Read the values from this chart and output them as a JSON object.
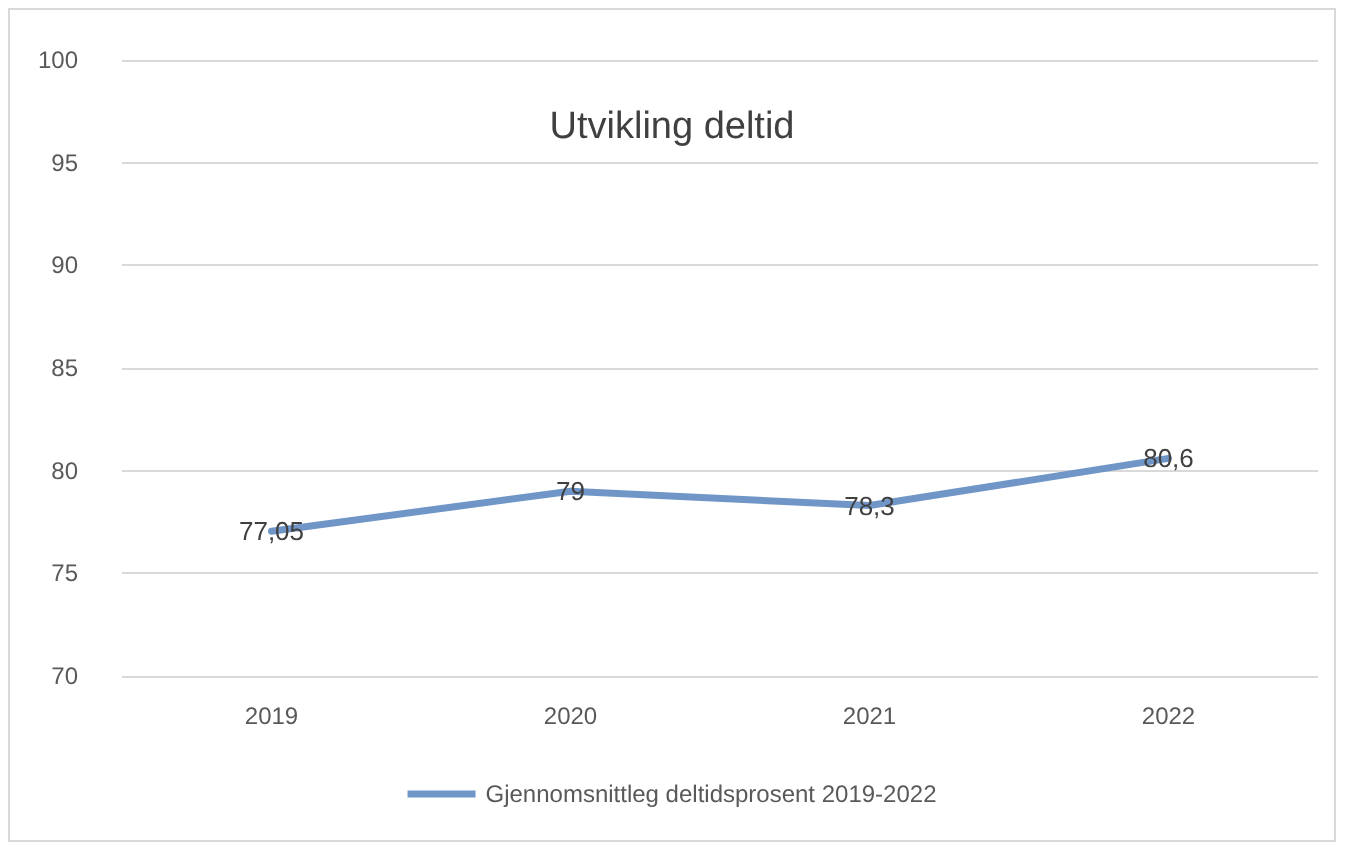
{
  "chart_data": {
    "type": "line",
    "title": "Utvikling deltid",
    "categories": [
      "2019",
      "2020",
      "2021",
      "2022"
    ],
    "series": [
      {
        "name": "Gjennomsnittleg deltidsprosent 2019-2022",
        "color": "#7096c8",
        "values": [
          77.05,
          79,
          78.3,
          80.6
        ],
        "value_labels": [
          "77,05",
          "79",
          "78,3",
          "80,6"
        ]
      }
    ],
    "ylim": [
      70,
      100
    ],
    "yticks": [
      70,
      75,
      80,
      85,
      90,
      95,
      100
    ],
    "grid": "y",
    "legend": "bottom",
    "marker": "none",
    "line_style": "solid"
  }
}
